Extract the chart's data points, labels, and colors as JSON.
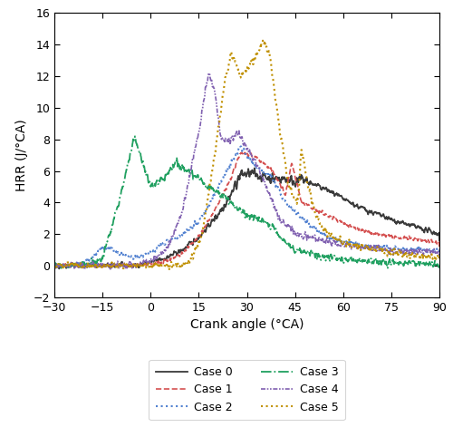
{
  "title": "",
  "xlabel": "Crank angle (°CA)",
  "ylabel": "HRR (J/°CA)",
  "xlim": [
    -30,
    90
  ],
  "ylim": [
    -2,
    16
  ],
  "xticks": [
    -30,
    -15,
    0,
    15,
    30,
    45,
    60,
    75,
    90
  ],
  "yticks": [
    -2,
    0,
    2,
    4,
    6,
    8,
    10,
    12,
    14,
    16
  ],
  "cases": {
    "Case 0": {
      "color": "#3a3a3a",
      "linestyle": "solid",
      "linewidth": 1.3
    },
    "Case 1": {
      "color": "#d45050",
      "linestyle": "dashed",
      "linewidth": 1.2
    },
    "Case 2": {
      "color": "#5080d0",
      "linestyle": "dotted",
      "linewidth": 1.5
    },
    "Case 3": {
      "color": "#20a060",
      "linestyle": "dashdot",
      "linewidth": 1.3
    },
    "Case 4": {
      "color": "#8060b0",
      "linestyle": "dashdotdotted",
      "linewidth": 1.2
    },
    "Case 5": {
      "color": "#c09000",
      "linestyle": "dotted",
      "linewidth": 1.5
    }
  },
  "background_color": "#ffffff",
  "legend_ncol": 2,
  "legend_fontsize": 9
}
